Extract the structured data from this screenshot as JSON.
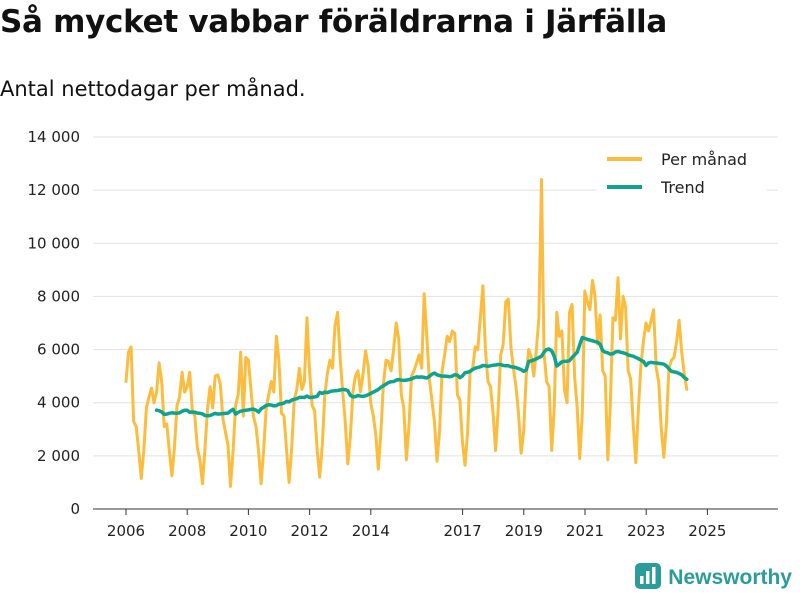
{
  "title": "Så mycket vabbar föräldrarna i Järfälla",
  "subtitle": "Antal nettodagar per månad.",
  "brand": {
    "name": "Newsworthy",
    "icon": "newsworthy-logo-icon"
  },
  "colors": {
    "per_manad": "#FCBD3E",
    "trend": "#0EA38F",
    "grid": "#E2E2E2",
    "axis": "#333333"
  },
  "chart_data": {
    "type": "line",
    "title": "Så mycket vabbar föräldrarna i Järfälla",
    "subtitle": "Antal nettodagar per månad.",
    "xlabel": "",
    "ylabel": "",
    "ylim": [
      0,
      14000
    ],
    "xlim": [
      2006.0,
      2025.85
    ],
    "y_ticks": [
      {
        "value": 0,
        "label": "0"
      },
      {
        "value": 2000,
        "label": "2 000"
      },
      {
        "value": 4000,
        "label": "4 000"
      },
      {
        "value": 6000,
        "label": "6 000"
      },
      {
        "value": 8000,
        "label": "8 000"
      },
      {
        "value": 10000,
        "label": "10 000"
      },
      {
        "value": 12000,
        "label": "12 000"
      },
      {
        "value": 14000,
        "label": "14 000"
      }
    ],
    "x_ticks": [
      {
        "value": 2006,
        "label": "2006"
      },
      {
        "value": 2008,
        "label": "2008"
      },
      {
        "value": 2010,
        "label": "2010"
      },
      {
        "value": 2012,
        "label": "2012"
      },
      {
        "value": 2014,
        "label": "2014"
      },
      {
        "value": 2017,
        "label": "2017"
      },
      {
        "value": 2019,
        "label": "2019"
      },
      {
        "value": 2021,
        "label": "2021"
      },
      {
        "value": 2023,
        "label": "2023"
      },
      {
        "value": 2025,
        "label": "2025"
      }
    ],
    "grid": true,
    "legend": "top-right",
    "series": [
      {
        "name": "Per månad",
        "start": 2006.0,
        "step": 0.0833,
        "values": [
          4800,
          5900,
          6100,
          3300,
          3100,
          2200,
          1150,
          2200,
          3800,
          4200,
          4550,
          4000,
          4400,
          5500,
          4800,
          3100,
          3200,
          2200,
          1250,
          2300,
          3900,
          4200,
          5150,
          4400,
          4600,
          5150,
          3700,
          3500,
          2300,
          1850,
          950,
          2300,
          3800,
          4600,
          3800,
          5000,
          5050,
          4700,
          3400,
          2900,
          2400,
          850,
          2200,
          3900,
          4300,
          5900,
          3500,
          5700,
          5600,
          4500,
          3500,
          3100,
          2200,
          950,
          2200,
          3800,
          4300,
          4800,
          4400,
          6500,
          5600,
          3600,
          3500,
          2200,
          1000,
          2300,
          4100,
          4500,
          5300,
          4500,
          4800,
          7200,
          5200,
          3900,
          3700,
          2200,
          1200,
          2400,
          4300,
          5100,
          5600,
          5300,
          6900,
          7400,
          5700,
          4400,
          3300,
          1700,
          2700,
          4400,
          5000,
          5200,
          4400,
          5100,
          5950,
          5350,
          4000,
          3500,
          2800,
          1500,
          2900,
          4700,
          5600,
          5550,
          5200,
          6000,
          7000,
          6400,
          4300,
          3800,
          1850,
          3100,
          5000,
          5200,
          5500,
          5800,
          5300,
          8100,
          6500,
          4900,
          4100,
          3300,
          1800,
          2900,
          5200,
          5800,
          6500,
          6300,
          6700,
          6600,
          4300,
          4100,
          2500,
          1650,
          2900,
          5200,
          5300,
          6100,
          6000,
          7200,
          8400,
          6000,
          4800,
          4600,
          3600,
          2200,
          3800,
          5800,
          6200,
          7800,
          7900,
          6100,
          5300,
          4600,
          3600,
          2100,
          2900,
          5000,
          6000,
          5700,
          5000,
          6000,
          7200,
          12400,
          5900,
          4800,
          4600,
          2200,
          3800,
          7400,
          6500,
          6700,
          4500,
          4000,
          7400,
          7700,
          5000,
          3800,
          1900,
          3600,
          8200,
          7800,
          7500,
          8600,
          8000,
          6200,
          7300,
          5200,
          5000,
          1850,
          3900,
          7200,
          7100,
          8700,
          6400,
          8000,
          7600,
          5200,
          4900,
          3200,
          1750,
          3700,
          5400,
          6300,
          7000,
          6700,
          7100,
          7500,
          5300,
          4800,
          3000,
          1950,
          3200,
          5300,
          5600,
          5700,
          6300,
          7100,
          5900,
          5100,
          4500
        ]
      },
      {
        "name": "Trend",
        "start": 2007.0,
        "step": 0.0833,
        "values": [
          3720,
          3700,
          3650,
          3560,
          3570,
          3600,
          3620,
          3610,
          3600,
          3620,
          3680,
          3720,
          3720,
          3640,
          3650,
          3640,
          3610,
          3600,
          3580,
          3520,
          3510,
          3520,
          3560,
          3600,
          3570,
          3580,
          3590,
          3600,
          3610,
          3690,
          3750,
          3570,
          3640,
          3680,
          3700,
          3720,
          3730,
          3750,
          3760,
          3720,
          3650,
          3770,
          3830,
          3900,
          3920,
          3910,
          3880,
          3890,
          3950,
          3960,
          3990,
          4050,
          4030,
          4100,
          4130,
          4150,
          4200,
          4200,
          4200,
          4250,
          4200,
          4200,
          4220,
          4240,
          4390,
          4350,
          4400,
          4380,
          4420,
          4440,
          4450,
          4460,
          4480,
          4500,
          4490,
          4460,
          4280,
          4220,
          4230,
          4270,
          4250,
          4240,
          4260,
          4300,
          4350,
          4400,
          4450,
          4500,
          4580,
          4640,
          4700,
          4760,
          4790,
          4800,
          4850,
          4870,
          4850,
          4840,
          4850,
          4870,
          4900,
          4940,
          4970,
          4960,
          4970,
          4950,
          4930,
          4990,
          5070,
          5120,
          5050,
          5020,
          5000,
          5000,
          4990,
          4980,
          5000,
          5050,
          5040,
          4940,
          5010,
          5130,
          5150,
          5180,
          5250,
          5300,
          5330,
          5350,
          5400,
          5390,
          5370,
          5390,
          5410,
          5420,
          5440,
          5440,
          5400,
          5390,
          5390,
          5350,
          5340,
          5320,
          5280,
          5250,
          5180,
          5230,
          5560,
          5570,
          5610,
          5650,
          5700,
          5750,
          5900,
          6000,
          6020,
          5950,
          5750,
          5380,
          5450,
          5540,
          5560,
          5560,
          5580,
          5700,
          5800,
          5900,
          6180,
          6450,
          6420,
          6380,
          6360,
          6330,
          6300,
          6280,
          6200,
          5960,
          5900,
          5880,
          5830,
          5840,
          5910,
          5930,
          5900,
          5880,
          5850,
          5800,
          5770,
          5750,
          5700,
          5660,
          5600,
          5550,
          5400,
          5500,
          5520,
          5500,
          5500,
          5480,
          5470,
          5450,
          5380,
          5280,
          5180,
          5160,
          5140,
          5100,
          5050,
          4950,
          4880
        ]
      }
    ]
  }
}
